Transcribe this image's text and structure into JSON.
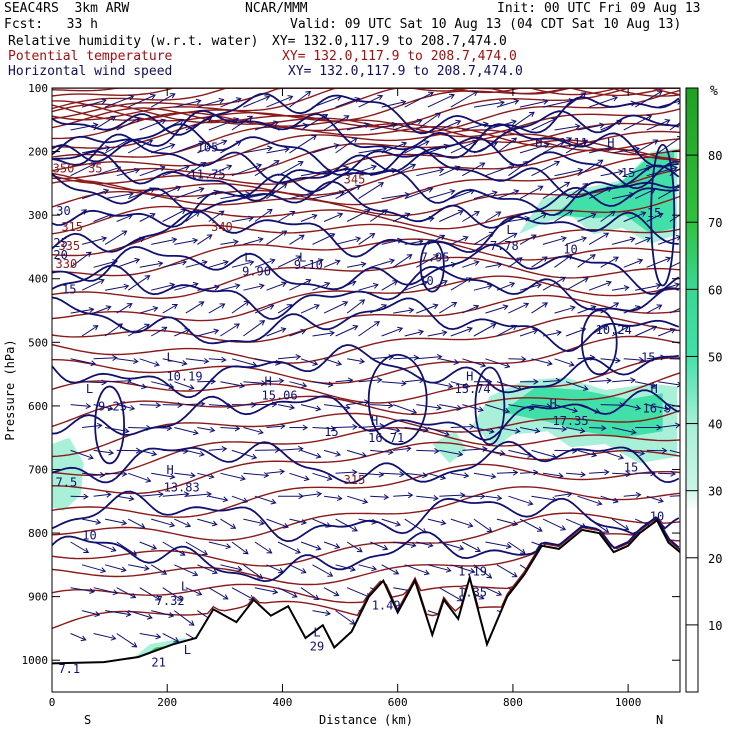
{
  "header": {
    "model": "SEAC4RS  3km ARW",
    "center": "NCAR/MMM",
    "init": "Init: 00 UTC Fri 09 Aug 13",
    "fcst": "Fcst:   33 h",
    "valid": "Valid: 09 UTC Sat 10 Aug 13 (04 CDT Sat 10 Aug 13)"
  },
  "legend": {
    "rh_label": "Relative humidity (w.r.t. water)",
    "theta_label": "Potential temperature",
    "wind_label": "Horizontal wind speed",
    "rh_xy": "XY= 132.0,117.9 to 208.7,474.0",
    "theta_xy": "XY= 132.0,117.9 to 208.7,474.0",
    "wind_xy": "XY= 132.0,117.9 to 208.7,474.0"
  },
  "colors": {
    "rh_fill_low": "#a8f0d8",
    "rh_fill_mid": "#40e0a8",
    "rh_fill_high": "#30c040",
    "theta": "#8b1a1a",
    "wind": "#101070",
    "terrain": "#000000"
  },
  "chart_data": {
    "type": "cross-section",
    "xlabel": "Distance (km)",
    "ylabel": "Pressure (hPa)",
    "xlim": [
      0,
      1090
    ],
    "ylim": [
      1050,
      100
    ],
    "x_ticks": [
      "0",
      "200",
      "400",
      "600",
      "800",
      "1000"
    ],
    "x_tick_values": [
      0,
      200,
      400,
      600,
      800,
      1000
    ],
    "y_ticks": [
      "100",
      "200",
      "300",
      "400",
      "500",
      "600",
      "700",
      "800",
      "900",
      "1000"
    ],
    "y_tick_values": [
      100,
      200,
      300,
      400,
      500,
      600,
      700,
      800,
      900,
      1000
    ],
    "x_end_left": "S",
    "x_end_right": "N",
    "colorbar": {
      "unit": "%",
      "ticks": [
        "10",
        "20",
        "30",
        "40",
        "50",
        "60",
        "70",
        "80"
      ],
      "tick_values": [
        10,
        20,
        30,
        40,
        50,
        60,
        70,
        80
      ],
      "range": [
        0,
        90
      ]
    },
    "theta_levels": [
      {
        "x": 35,
        "p": 325,
        "label": "315"
      },
      {
        "x": 25,
        "p": 383,
        "label": "330"
      },
      {
        "x": 30,
        "p": 355,
        "label": "335"
      },
      {
        "x": 20,
        "p": 233,
        "label": "350"
      },
      {
        "x": 75,
        "p": 233,
        "label": "35"
      },
      {
        "x": 295,
        "p": 325,
        "label": "340"
      },
      {
        "x": 525,
        "p": 250,
        "label": "345"
      },
      {
        "x": 525,
        "p": 723,
        "label": "315"
      }
    ],
    "wind_labels": [
      {
        "x": 20,
        "p": 300,
        "label": "30"
      },
      {
        "x": 15,
        "p": 350,
        "label": "25"
      },
      {
        "x": 15,
        "p": 369,
        "label": "20"
      },
      {
        "x": 30,
        "p": 423,
        "label": "15"
      },
      {
        "x": 25,
        "p": 727,
        "label": "7.5"
      },
      {
        "x": 65,
        "p": 810,
        "label": "10"
      },
      {
        "x": 105,
        "p": 607,
        "label": "9.25"
      },
      {
        "x": 230,
        "p": 560,
        "label": "10.19"
      },
      {
        "x": 225,
        "p": 735,
        "label": "13.83"
      },
      {
        "x": 355,
        "p": 395,
        "label": "9.90"
      },
      {
        "x": 445,
        "p": 385,
        "label": "9.10"
      },
      {
        "x": 395,
        "p": 590,
        "label": "15.06"
      },
      {
        "x": 485,
        "p": 647,
        "label": "15"
      },
      {
        "x": 580,
        "p": 657,
        "label": "16.71"
      },
      {
        "x": 665,
        "p": 373,
        "label": "7.95"
      },
      {
        "x": 650,
        "p": 410,
        "label": "10"
      },
      {
        "x": 730,
        "p": 580,
        "label": "15.74"
      },
      {
        "x": 785,
        "p": 355,
        "label": "7.78"
      },
      {
        "x": 900,
        "p": 360,
        "label": "10"
      },
      {
        "x": 975,
        "p": 487,
        "label": "10.24"
      },
      {
        "x": 900,
        "p": 630,
        "label": "17.35"
      },
      {
        "x": 1050,
        "p": 610,
        "label": "16.9"
      },
      {
        "x": 1035,
        "p": 530,
        "label": "15"
      },
      {
        "x": 1005,
        "p": 703,
        "label": "15"
      },
      {
        "x": 1045,
        "p": 303,
        "label": "15"
      },
      {
        "x": 1050,
        "p": 780,
        "label": "10"
      },
      {
        "x": 1000,
        "p": 240,
        "label": "15"
      },
      {
        "x": 205,
        "p": 913,
        "label": "7.32"
      },
      {
        "x": 460,
        "p": 985,
        "label": "29"
      },
      {
        "x": 580,
        "p": 920,
        "label": "1.49"
      },
      {
        "x": 730,
        "p": 900,
        "label": "1.35"
      },
      {
        "x": 730,
        "p": 867,
        "label": "1.19"
      },
      {
        "x": 185,
        "p": 1010,
        "label": "21"
      },
      {
        "x": 30,
        "p": 1020,
        "label": "7.1"
      },
      {
        "x": 270,
        "p": 242,
        "label": "11.75"
      },
      {
        "x": 270,
        "p": 200,
        "label": "105"
      },
      {
        "x": 905,
        "p": 193,
        "label": "2.11"
      }
    ],
    "high_low_markers": [
      {
        "x": 340,
        "p": 373,
        "label": "L"
      },
      {
        "x": 435,
        "p": 373,
        "label": "L"
      },
      {
        "x": 205,
        "p": 530,
        "label": "L"
      },
      {
        "x": 65,
        "p": 580,
        "label": "L"
      },
      {
        "x": 205,
        "p": 707,
        "label": "H"
      },
      {
        "x": 375,
        "p": 568,
        "label": "H"
      },
      {
        "x": 560,
        "p": 630,
        "label": "H"
      },
      {
        "x": 725,
        "p": 560,
        "label": "H"
      },
      {
        "x": 870,
        "p": 603,
        "label": "H"
      },
      {
        "x": 1045,
        "p": 580,
        "label": "H"
      },
      {
        "x": 795,
        "p": 330,
        "label": "L"
      },
      {
        "x": 230,
        "p": 890,
        "label": "L"
      },
      {
        "x": 460,
        "p": 963,
        "label": "L"
      },
      {
        "x": 235,
        "p": 990,
        "label": "L"
      },
      {
        "x": 845,
        "p": 193,
        "label": "H"
      },
      {
        "x": 970,
        "p": 193,
        "label": "H"
      }
    ]
  }
}
